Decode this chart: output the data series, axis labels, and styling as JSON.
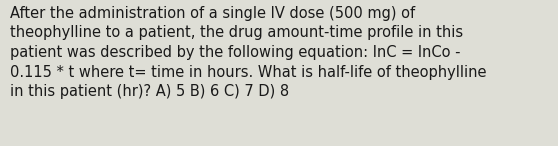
{
  "text_lines": [
    "After the administration of a single IV dose (500 mg) of",
    "theophylline to a patient, the drug amount-time profile in this",
    "patient was described by the following equation: lnC = lnCo -",
    "0.115 * t where t= time in hours. What is half-life of theophylline",
    "in this patient (hr)? A) 5 B) 6 C) 7 D) 8"
  ],
  "background_color": "#deded6",
  "text_color": "#1a1a1a",
  "font_size": 10.5,
  "fig_width": 5.58,
  "fig_height": 1.46,
  "dpi": 100
}
